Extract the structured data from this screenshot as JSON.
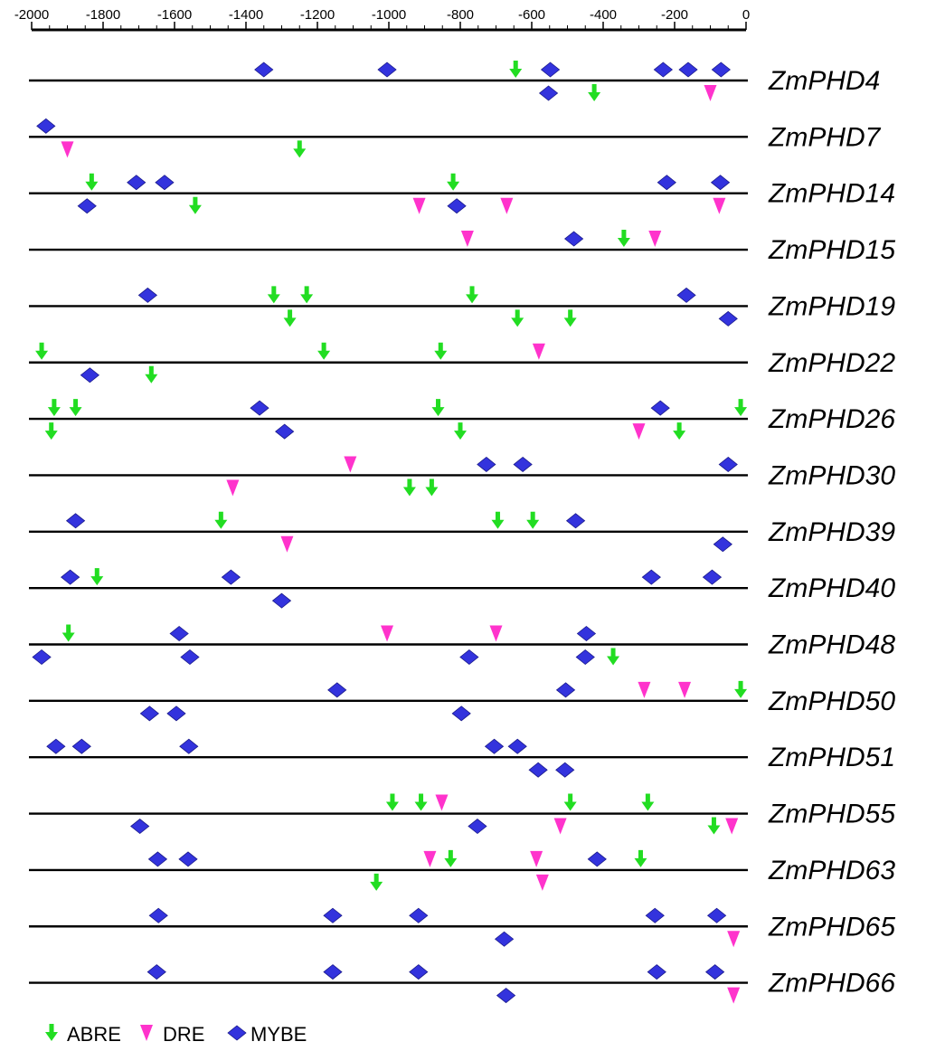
{
  "chart_data": {
    "type": "scatter",
    "title": "",
    "xlabel": "",
    "ylabel": "",
    "xlim": [
      -2000,
      0
    ],
    "x_ticks": [
      -2000,
      -1800,
      -1600,
      -1400,
      -1200,
      -1000,
      -800,
      -600,
      -400,
      -200,
      0
    ],
    "x_tick_labels": [
      "-2000",
      "-1800",
      "-1600",
      "-1400",
      "-1200",
      "-1000",
      "-800",
      "-600",
      "-400",
      "-200",
      "0"
    ],
    "legend": [
      {
        "name": "ABRE",
        "color": "#22dd22",
        "marker": "arrow-down"
      },
      {
        "name": "DRE",
        "color": "#ff33cc",
        "marker": "triangle-down"
      },
      {
        "name": "MYBE",
        "color": "#3333dd",
        "marker": "diamond"
      }
    ],
    "genes": [
      {
        "name": "ZmPHD4",
        "above": [
          {
            "x": -1350,
            "t": "MYBE"
          },
          {
            "x": -1005,
            "t": "MYBE"
          },
          {
            "x": -645,
            "t": "ABRE"
          },
          {
            "x": -548,
            "t": "MYBE"
          },
          {
            "x": -232,
            "t": "MYBE"
          },
          {
            "x": -162,
            "t": "MYBE"
          },
          {
            "x": -70,
            "t": "MYBE"
          }
        ],
        "below": [
          {
            "x": -553,
            "t": "MYBE"
          },
          {
            "x": -425,
            "t": "ABRE"
          },
          {
            "x": -100,
            "t": "DRE"
          }
        ]
      },
      {
        "name": "ZmPHD7",
        "above": [
          {
            "x": -1960,
            "t": "MYBE"
          }
        ],
        "below": [
          {
            "x": -1900,
            "t": "DRE"
          },
          {
            "x": -1250,
            "t": "ABRE"
          }
        ]
      },
      {
        "name": "ZmPHD14",
        "above": [
          {
            "x": -1832,
            "t": "ABRE"
          },
          {
            "x": -1707,
            "t": "MYBE"
          },
          {
            "x": -1628,
            "t": "MYBE"
          },
          {
            "x": -820,
            "t": "ABRE"
          },
          {
            "x": -222,
            "t": "MYBE"
          },
          {
            "x": -72,
            "t": "MYBE"
          }
        ],
        "below": [
          {
            "x": -1845,
            "t": "MYBE"
          },
          {
            "x": -1542,
            "t": "ABRE"
          },
          {
            "x": -915,
            "t": "DRE"
          },
          {
            "x": -810,
            "t": "MYBE"
          },
          {
            "x": -670,
            "t": "DRE"
          },
          {
            "x": -75,
            "t": "DRE"
          }
        ]
      },
      {
        "name": "ZmPHD15",
        "above": [
          {
            "x": -780,
            "t": "DRE"
          },
          {
            "x": -482,
            "t": "MYBE"
          },
          {
            "x": -342,
            "t": "ABRE"
          },
          {
            "x": -255,
            "t": "DRE"
          }
        ],
        "below": []
      },
      {
        "name": "ZmPHD19",
        "above": [
          {
            "x": -1675,
            "t": "MYBE"
          },
          {
            "x": -1322,
            "t": "ABRE"
          },
          {
            "x": -1230,
            "t": "ABRE"
          },
          {
            "x": -767,
            "t": "ABRE"
          },
          {
            "x": -167,
            "t": "MYBE"
          }
        ],
        "below": [
          {
            "x": -1277,
            "t": "ABRE"
          },
          {
            "x": -640,
            "t": "ABRE"
          },
          {
            "x": -492,
            "t": "ABRE"
          },
          {
            "x": -50,
            "t": "MYBE"
          }
        ]
      },
      {
        "name": "ZmPHD22",
        "above": [
          {
            "x": -1972,
            "t": "ABRE"
          },
          {
            "x": -1182,
            "t": "ABRE"
          },
          {
            "x": -855,
            "t": "ABRE"
          },
          {
            "x": -580,
            "t": "DRE"
          }
        ],
        "below": [
          {
            "x": -1837,
            "t": "MYBE"
          },
          {
            "x": -1665,
            "t": "ABRE"
          }
        ]
      },
      {
        "name": "ZmPHD26",
        "above": [
          {
            "x": -1937,
            "t": "ABRE"
          },
          {
            "x": -1877,
            "t": "ABRE"
          },
          {
            "x": -1362,
            "t": "MYBE"
          },
          {
            "x": -862,
            "t": "ABRE"
          },
          {
            "x": -240,
            "t": "MYBE"
          },
          {
            "x": -15,
            "t": "ABRE"
          }
        ],
        "below": [
          {
            "x": -1945,
            "t": "ABRE"
          },
          {
            "x": -1292,
            "t": "MYBE"
          },
          {
            "x": -800,
            "t": "ABRE"
          },
          {
            "x": -300,
            "t": "DRE"
          },
          {
            "x": -187,
            "t": "ABRE"
          }
        ]
      },
      {
        "name": "ZmPHD30",
        "above": [
          {
            "x": -1108,
            "t": "DRE"
          },
          {
            "x": -727,
            "t": "MYBE"
          },
          {
            "x": -625,
            "t": "MYBE"
          },
          {
            "x": -50,
            "t": "MYBE"
          }
        ],
        "below": [
          {
            "x": -1437,
            "t": "DRE"
          },
          {
            "x": -942,
            "t": "ABRE"
          },
          {
            "x": -880,
            "t": "ABRE"
          }
        ]
      },
      {
        "name": "ZmPHD39",
        "above": [
          {
            "x": -1877,
            "t": "MYBE"
          },
          {
            "x": -1470,
            "t": "ABRE"
          },
          {
            "x": -695,
            "t": "ABRE"
          },
          {
            "x": -597,
            "t": "ABRE"
          },
          {
            "x": -477,
            "t": "MYBE"
          }
        ],
        "below": [
          {
            "x": -1285,
            "t": "DRE"
          },
          {
            "x": -65,
            "t": "MYBE"
          }
        ]
      },
      {
        "name": "ZmPHD40",
        "above": [
          {
            "x": -1892,
            "t": "MYBE"
          },
          {
            "x": -1817,
            "t": "ABRE"
          },
          {
            "x": -1442,
            "t": "MYBE"
          },
          {
            "x": -265,
            "t": "MYBE"
          },
          {
            "x": -95,
            "t": "MYBE"
          }
        ],
        "below": [
          {
            "x": -1300,
            "t": "MYBE"
          }
        ]
      },
      {
        "name": "ZmPHD48",
        "above": [
          {
            "x": -1897,
            "t": "ABRE"
          },
          {
            "x": -1587,
            "t": "MYBE"
          },
          {
            "x": -1005,
            "t": "DRE"
          },
          {
            "x": -700,
            "t": "DRE"
          },
          {
            "x": -447,
            "t": "MYBE"
          }
        ],
        "below": [
          {
            "x": -1972,
            "t": "MYBE"
          },
          {
            "x": -1557,
            "t": "MYBE"
          },
          {
            "x": -775,
            "t": "MYBE"
          },
          {
            "x": -450,
            "t": "MYBE"
          },
          {
            "x": -372,
            "t": "ABRE"
          }
        ]
      },
      {
        "name": "ZmPHD50",
        "above": [
          {
            "x": -1145,
            "t": "MYBE"
          },
          {
            "x": -505,
            "t": "MYBE"
          },
          {
            "x": -285,
            "t": "DRE"
          },
          {
            "x": -172,
            "t": "DRE"
          },
          {
            "x": -15,
            "t": "ABRE"
          }
        ],
        "below": [
          {
            "x": -1670,
            "t": "MYBE"
          },
          {
            "x": -1595,
            "t": "MYBE"
          },
          {
            "x": -797,
            "t": "MYBE"
          }
        ]
      },
      {
        "name": "ZmPHD51",
        "above": [
          {
            "x": -1932,
            "t": "MYBE"
          },
          {
            "x": -1860,
            "t": "MYBE"
          },
          {
            "x": -1560,
            "t": "MYBE"
          },
          {
            "x": -705,
            "t": "MYBE"
          },
          {
            "x": -640,
            "t": "MYBE"
          }
        ],
        "below": [
          {
            "x": -582,
            "t": "MYBE"
          },
          {
            "x": -507,
            "t": "MYBE"
          }
        ]
      },
      {
        "name": "ZmPHD55",
        "above": [
          {
            "x": -990,
            "t": "ABRE"
          },
          {
            "x": -910,
            "t": "ABRE"
          },
          {
            "x": -852,
            "t": "DRE"
          },
          {
            "x": -492,
            "t": "ABRE"
          },
          {
            "x": -275,
            "t": "ABRE"
          }
        ],
        "below": [
          {
            "x": -1697,
            "t": "MYBE"
          },
          {
            "x": -752,
            "t": "MYBE"
          },
          {
            "x": -520,
            "t": "DRE"
          },
          {
            "x": -90,
            "t": "ABRE"
          },
          {
            "x": -40,
            "t": "DRE"
          }
        ]
      },
      {
        "name": "ZmPHD63",
        "above": [
          {
            "x": -1647,
            "t": "MYBE"
          },
          {
            "x": -1562,
            "t": "MYBE"
          },
          {
            "x": -885,
            "t": "DRE"
          },
          {
            "x": -827,
            "t": "ABRE"
          },
          {
            "x": -587,
            "t": "DRE"
          },
          {
            "x": -417,
            "t": "MYBE"
          },
          {
            "x": -295,
            "t": "ABRE"
          }
        ],
        "below": [
          {
            "x": -1035,
            "t": "ABRE"
          },
          {
            "x": -570,
            "t": "DRE"
          }
        ]
      },
      {
        "name": "ZmPHD65",
        "above": [
          {
            "x": -1645,
            "t": "MYBE"
          },
          {
            "x": -1157,
            "t": "MYBE"
          },
          {
            "x": -917,
            "t": "MYBE"
          },
          {
            "x": -255,
            "t": "MYBE"
          },
          {
            "x": -82,
            "t": "MYBE"
          }
        ],
        "below": [
          {
            "x": -677,
            "t": "MYBE"
          },
          {
            "x": -35,
            "t": "DRE"
          }
        ]
      },
      {
        "name": "ZmPHD66",
        "above": [
          {
            "x": -1650,
            "t": "MYBE"
          },
          {
            "x": -1157,
            "t": "MYBE"
          },
          {
            "x": -917,
            "t": "MYBE"
          },
          {
            "x": -250,
            "t": "MYBE"
          },
          {
            "x": -87,
            "t": "MYBE"
          }
        ],
        "below": [
          {
            "x": -672,
            "t": "MYBE"
          },
          {
            "x": -35,
            "t": "DRE"
          }
        ]
      }
    ]
  }
}
